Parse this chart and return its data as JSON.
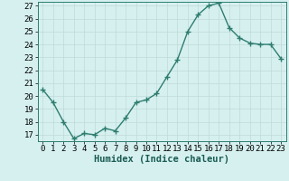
{
  "x": [
    0,
    1,
    2,
    3,
    4,
    5,
    6,
    7,
    8,
    9,
    10,
    11,
    12,
    13,
    14,
    15,
    16,
    17,
    18,
    19,
    20,
    21,
    22,
    23
  ],
  "y": [
    20.5,
    19.5,
    18.0,
    16.7,
    17.1,
    17.0,
    17.5,
    17.3,
    18.3,
    19.5,
    19.7,
    20.2,
    21.5,
    22.8,
    25.0,
    26.3,
    27.0,
    27.2,
    25.3,
    24.5,
    24.1,
    24.0,
    24.0,
    22.9
  ],
  "line_color": "#2e7d6e",
  "marker": "+",
  "marker_size": 4,
  "marker_linewidth": 1.0,
  "line_width": 1.0,
  "bg_color": "#d6f0f0",
  "grid_color": "#c0dada",
  "grid_linewidth": 0.5,
  "xlabel": "Humidex (Indice chaleur)",
  "ylim_min": 16.5,
  "ylim_max": 27.3,
  "xlim_min": -0.5,
  "xlim_max": 23.5,
  "yticks": [
    17,
    18,
    19,
    20,
    21,
    22,
    23,
    24,
    25,
    26,
    27
  ],
  "xticks": [
    0,
    1,
    2,
    3,
    4,
    5,
    6,
    7,
    8,
    9,
    10,
    11,
    12,
    13,
    14,
    15,
    16,
    17,
    18,
    19,
    20,
    21,
    22,
    23
  ],
  "tick_fontsize": 6.5,
  "xlabel_fontsize": 7.5,
  "spine_color": "#2e7d6e"
}
